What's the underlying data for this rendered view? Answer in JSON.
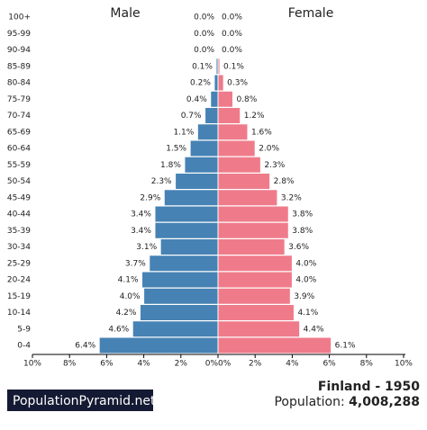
{
  "chart_data": {
    "type": "pyramid",
    "title": "Finland - 1950",
    "population_label": "Population:",
    "population_value": "4,008,288",
    "source": "PopulationPyramid.net",
    "categories": [
      "0-4",
      "5-9",
      "10-14",
      "15-19",
      "20-24",
      "25-29",
      "30-34",
      "35-39",
      "40-44",
      "45-49",
      "50-54",
      "55-59",
      "60-64",
      "65-69",
      "70-74",
      "75-79",
      "80-84",
      "85-89",
      "90-94",
      "95-99",
      "100+"
    ],
    "series": [
      {
        "name": "Male",
        "color": "#4682b4",
        "values": [
          6.4,
          4.6,
          4.2,
          4.0,
          4.1,
          3.7,
          3.1,
          3.4,
          3.4,
          2.9,
          2.3,
          1.8,
          1.5,
          1.1,
          0.7,
          0.4,
          0.2,
          0.1,
          0.0,
          0.0,
          0.0
        ],
        "value_labels": [
          "6.4%",
          "4.6%",
          "4.2%",
          "4.0%",
          "4.1%",
          "3.7%",
          "3.1%",
          "3.4%",
          "3.4%",
          "2.9%",
          "2.3%",
          "1.8%",
          "1.5%",
          "1.1%",
          "0.7%",
          "0.4%",
          "0.2%",
          "0.1%",
          "0.0%",
          "0.0%",
          "0.0%"
        ]
      },
      {
        "name": "Female",
        "color": "#ef7b8a",
        "values": [
          6.1,
          4.4,
          4.1,
          3.9,
          4.0,
          4.0,
          3.6,
          3.8,
          3.8,
          3.2,
          2.8,
          2.3,
          2.0,
          1.6,
          1.2,
          0.8,
          0.3,
          0.1,
          0.0,
          0.0,
          0.0
        ],
        "value_labels": [
          "6.1%",
          "4.4%",
          "4.1%",
          "3.9%",
          "4.0%",
          "4.0%",
          "3.6%",
          "3.8%",
          "3.8%",
          "3.2%",
          "2.8%",
          "2.3%",
          "2.0%",
          "1.6%",
          "1.2%",
          "0.8%",
          "0.3%",
          "0.1%",
          "0.0%",
          "0.0%",
          "0.0%"
        ]
      }
    ],
    "xlim": [
      0,
      10
    ],
    "xticks": [
      {
        "value": 0,
        "label": "0%"
      },
      {
        "value": 2,
        "label": "2%"
      },
      {
        "value": 4,
        "label": "4%"
      },
      {
        "value": 6,
        "label": "6%"
      },
      {
        "value": 8,
        "label": "8%"
      },
      {
        "value": 10,
        "label": "10%"
      }
    ]
  }
}
